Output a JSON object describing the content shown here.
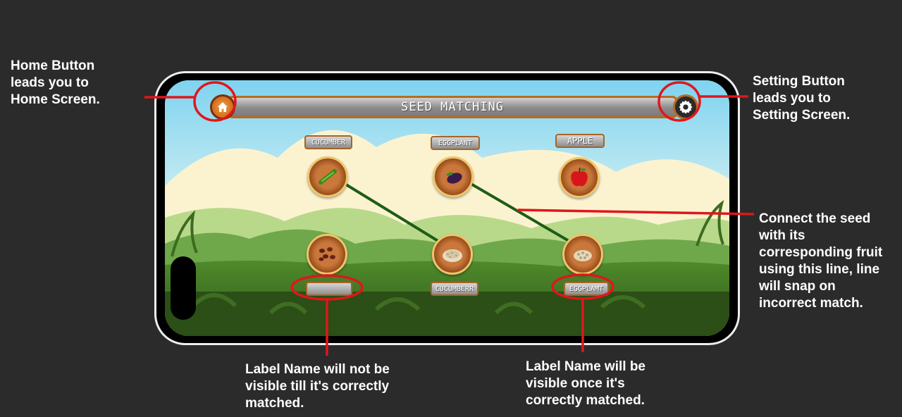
{
  "annotations": {
    "home": "Home Button\nleads you to\nHome Screen.",
    "settings": "Setting Button\nleads you to\nSetting Screen.",
    "connect": "Connect the seed\nwith its\ncorresponding fruit\nusing this line, line\nwill snap on\nincorrect match.",
    "label_hidden": "Label Name will not be\nvisible till it's correctly\nmatched.",
    "label_visible": "Label Name will be\nvisible once it's\ncorrectly matched."
  },
  "game": {
    "title": "SEED MATCHING",
    "home_icon": "home-icon",
    "settings_icon": "gear-icon",
    "fruits": [
      {
        "label": "CUCUMBER",
        "icon": "cucumber-icon"
      },
      {
        "label": "EGGPLANT",
        "icon": "eggplant-icon"
      },
      {
        "label": "APPLE",
        "icon": "apple-icon"
      }
    ],
    "seeds": [
      {
        "label": "",
        "icon": "seeds-icon"
      },
      {
        "label": "CUCUMBERR",
        "icon": "seeds-icon"
      },
      {
        "label": "EGGPLAMT",
        "icon": "seeds-icon"
      }
    ]
  },
  "colors": {
    "annotation_red": "#e0161c",
    "connector_green": "#1e5d16",
    "frame_orange": "#b76a21"
  }
}
